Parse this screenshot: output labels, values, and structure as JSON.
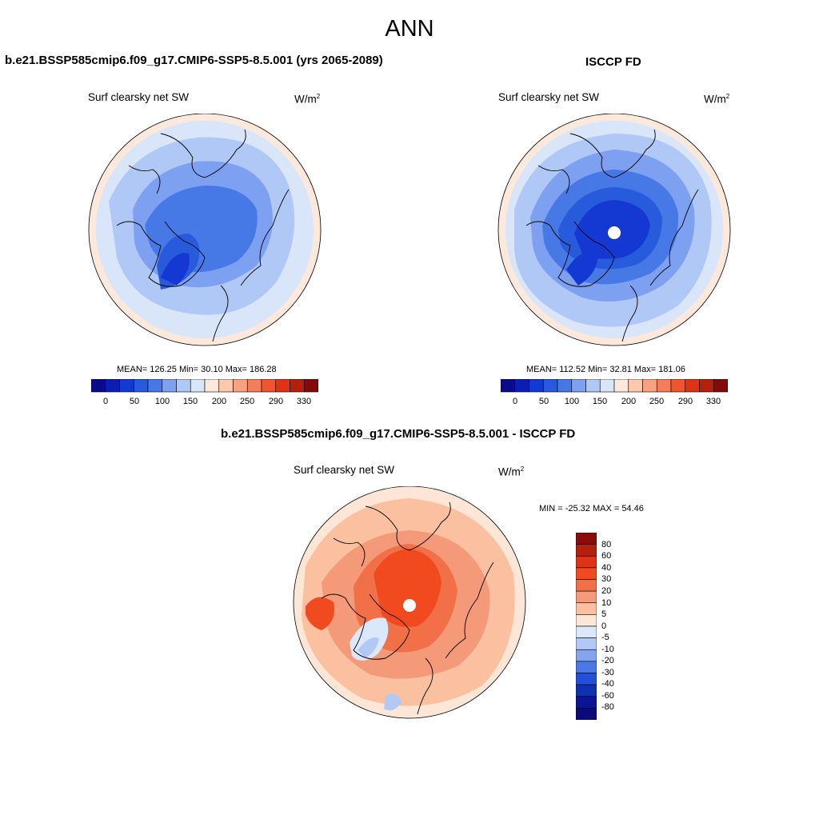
{
  "page": {
    "title": "ANN"
  },
  "top_left": {
    "title": "b.e21.BSSP585cmip6.f09_g17.CMIP6-SSP5-8.5.001 (yrs 2065-2089)",
    "variable": "Surf clearsky net SW",
    "units_base": "W/m",
    "units_exp": "2",
    "stats": "MEAN= 126.25  Min=  30.10  Max= 186.28"
  },
  "top_right": {
    "title": "ISCCP FD",
    "variable": "Surf clearsky net SW",
    "units_base": "W/m",
    "units_exp": "2",
    "stats": "MEAN= 112.52  Min=  32.81  Max= 181.06"
  },
  "bottom": {
    "title": "b.e21.BSSP585cmip6.f09_g17.CMIP6-SSP5-8.5.001 - ISCCP FD",
    "variable": "Surf clearsky net SW",
    "units_base": "W/m",
    "units_exp": "2",
    "minmax": "MIN = -25.32 MAX =  54.46"
  },
  "colorbar_top": {
    "tick_labels": [
      "0",
      "50",
      "100",
      "150",
      "200",
      "250",
      "290",
      "330"
    ],
    "colors": [
      "#0a0a8c",
      "#0a1eb4",
      "#1438d2",
      "#285adc",
      "#4678e6",
      "#7ea0f0",
      "#afc8f5",
      "#d9e6fa",
      "#fde9dc",
      "#fcc8ae",
      "#f7a383",
      "#f47d5b",
      "#f05530",
      "#e03214",
      "#b4200a",
      "#840a0a"
    ]
  },
  "colorbar_bottom": {
    "tick_labels": [
      "80",
      "60",
      "40",
      "30",
      "20",
      "10",
      "5",
      "0",
      "-5",
      "-10",
      "-20",
      "-30",
      "-40",
      "-60",
      "-80"
    ],
    "colors": [
      "#8c0a0a",
      "#b4200a",
      "#e03214",
      "#f04a1e",
      "#f27048",
      "#f59a78",
      "#fac0a0",
      "#fde6d6",
      "#dbe7fa",
      "#b2c8f5",
      "#84a4ee",
      "#4a78e6",
      "#2250dc",
      "#1030b4",
      "#0a1496",
      "#0a0a78"
    ]
  }
}
